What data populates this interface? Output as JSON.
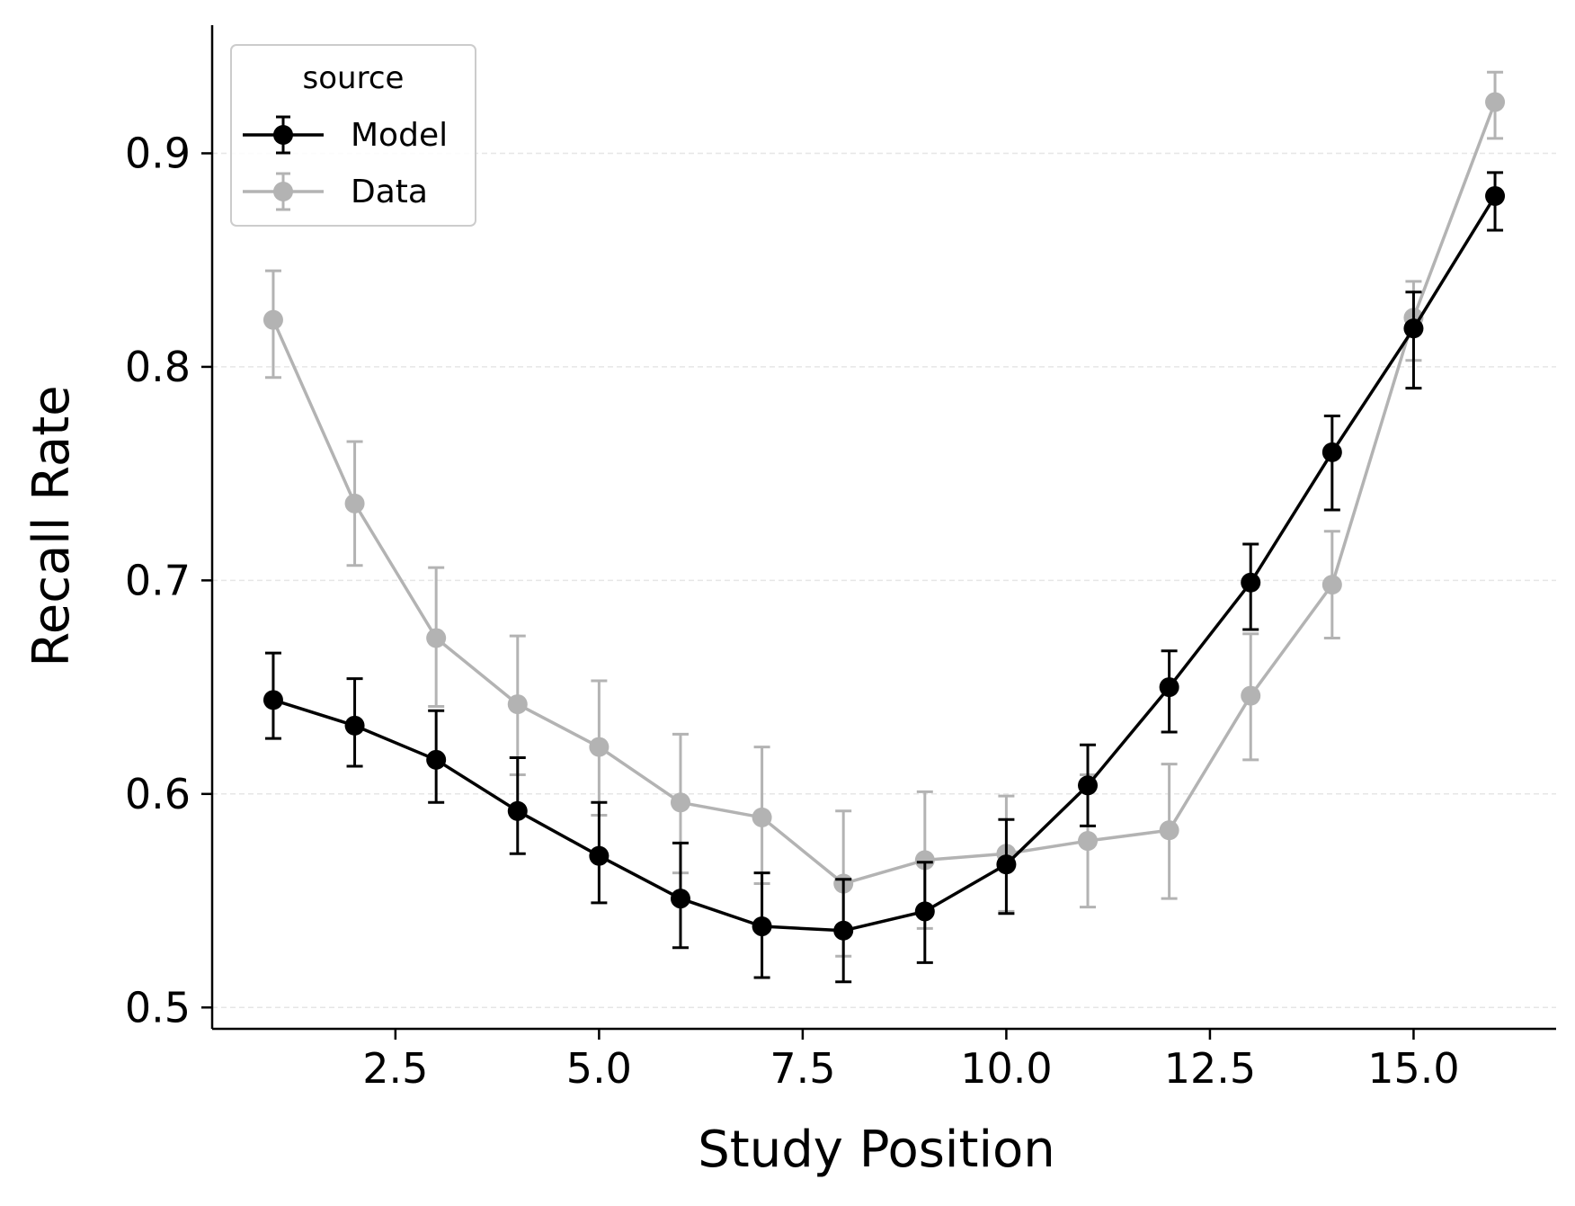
{
  "chart_data": {
    "type": "line",
    "title": "",
    "xlabel": "Study Position",
    "ylabel": "Recall Rate",
    "xlim": [
      0.25,
      16.75
    ],
    "ylim": [
      0.49,
      0.96
    ],
    "xticks": [
      2.5,
      5.0,
      7.5,
      10.0,
      12.5,
      15.0
    ],
    "xtick_labels": [
      "2.5",
      "5.0",
      "7.5",
      "10.0",
      "12.5",
      "15.0"
    ],
    "yticks": [
      0.5,
      0.6,
      0.7,
      0.8,
      0.9
    ],
    "ytick_labels": [
      "0.5",
      "0.6",
      "0.7",
      "0.8",
      "0.9"
    ],
    "grid": "horizontal dashed",
    "legend": {
      "title": "source",
      "position": "top-left",
      "entries": [
        "Model",
        "Data"
      ]
    },
    "x": [
      1,
      2,
      3,
      4,
      5,
      6,
      7,
      8,
      9,
      10,
      11,
      12,
      13,
      14,
      15,
      16
    ],
    "series": [
      {
        "name": "Model",
        "color": "#000000",
        "values": [
          0.644,
          0.632,
          0.616,
          0.592,
          0.571,
          0.551,
          0.538,
          0.536,
          0.545,
          0.567,
          0.604,
          0.65,
          0.699,
          0.76,
          0.818,
          0.88
        ],
        "lower": [
          0.626,
          0.613,
          0.596,
          0.572,
          0.549,
          0.528,
          0.514,
          0.512,
          0.521,
          0.544,
          0.585,
          0.629,
          0.677,
          0.733,
          0.79,
          0.864
        ],
        "upper": [
          0.666,
          0.654,
          0.639,
          0.617,
          0.596,
          0.577,
          0.563,
          0.56,
          0.568,
          0.588,
          0.623,
          0.667,
          0.717,
          0.777,
          0.835,
          0.891
        ]
      },
      {
        "name": "Data",
        "color": "#b3b3b3",
        "values": [
          0.822,
          0.736,
          0.673,
          0.642,
          0.622,
          0.596,
          0.589,
          0.558,
          0.569,
          0.572,
          0.578,
          0.583,
          0.646,
          0.698,
          0.823,
          0.924
        ],
        "lower": [
          0.795,
          0.707,
          0.641,
          0.609,
          0.59,
          0.563,
          0.558,
          0.524,
          0.537,
          0.545,
          0.547,
          0.551,
          0.616,
          0.673,
          0.803,
          0.907
        ],
        "upper": [
          0.845,
          0.765,
          0.706,
          0.674,
          0.653,
          0.628,
          0.622,
          0.592,
          0.601,
          0.599,
          0.609,
          0.614,
          0.675,
          0.723,
          0.84,
          0.938
        ]
      }
    ]
  }
}
